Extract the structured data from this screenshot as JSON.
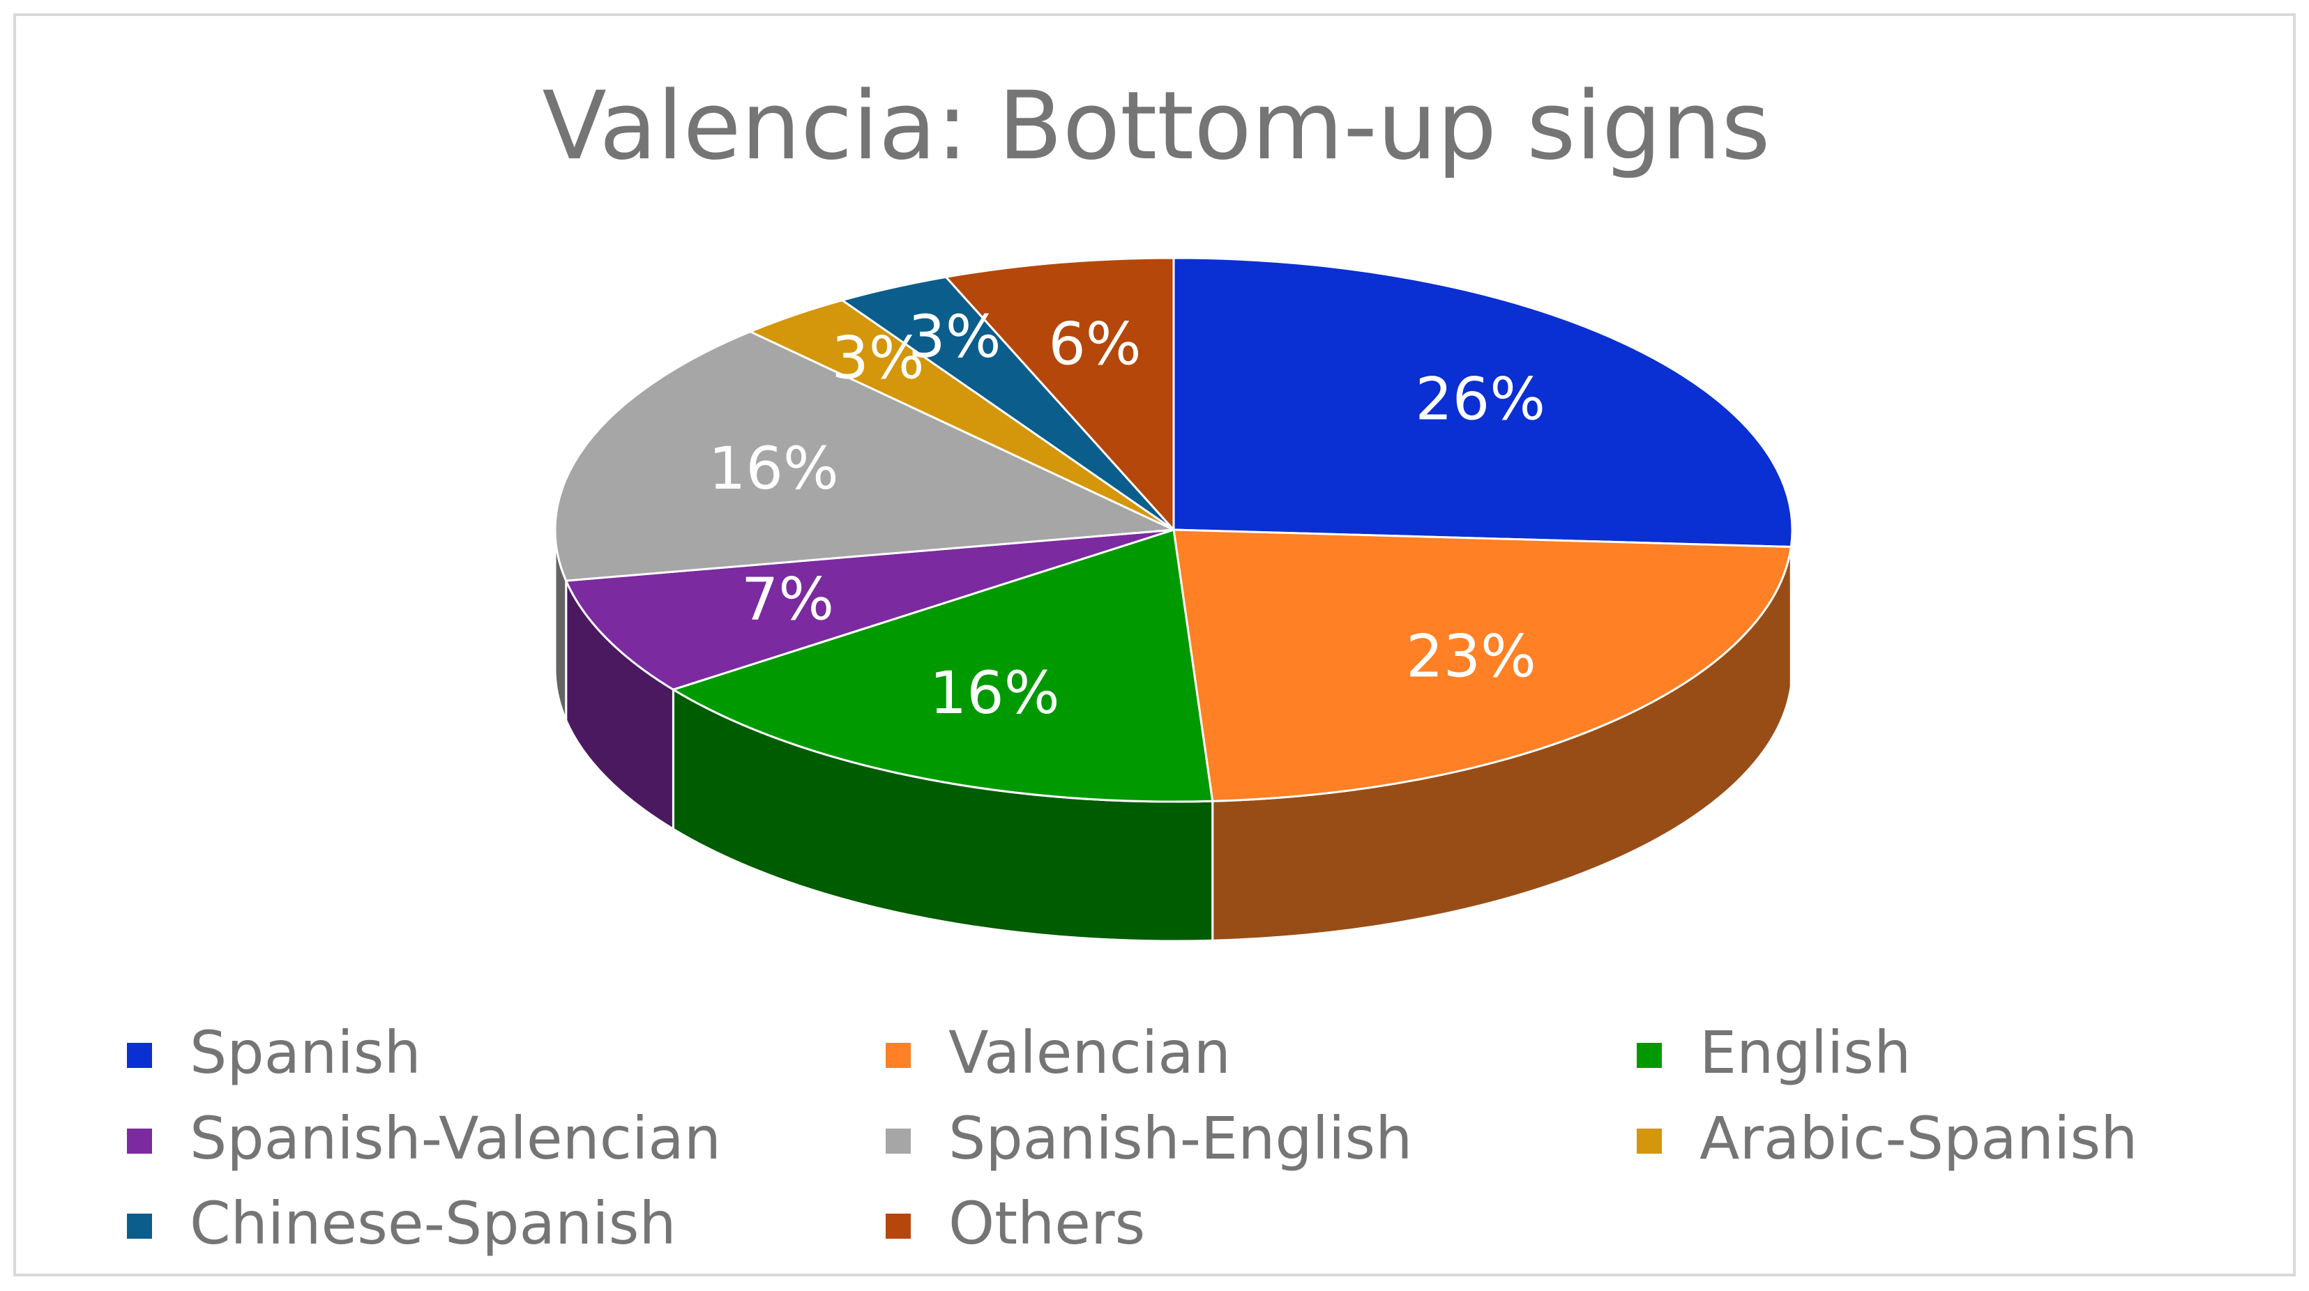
{
  "chart_data": {
    "type": "pie3d",
    "title": "Valencia: Bottom-up signs",
    "categories": [
      "Spanish",
      "Valencian",
      "English",
      "Spanish-Valencian",
      "Spanish-English",
      "Arabic-Spanish",
      "Chinese-Spanish",
      "Others"
    ],
    "values": [
      26,
      23,
      16,
      7,
      16,
      3,
      3,
      6
    ],
    "value_labels": [
      "26%",
      "23%",
      "16%",
      "7%",
      "16%",
      "3%",
      "3%",
      "6%"
    ],
    "colors": [
      "#0a2fd2",
      "#ff8025",
      "#009a00",
      "#7b2aa0",
      "#a6a6a6",
      "#d4960a",
      "#0b5d8c",
      "#b5470a"
    ]
  }
}
